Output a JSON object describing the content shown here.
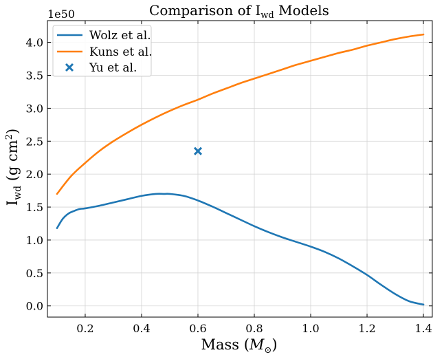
{
  "chart_data": {
    "type": "line",
    "title": {
      "prefix": "Comparison of I",
      "sub": "wd",
      "suffix": " Models"
    },
    "xlabel": {
      "text": "Mass (",
      "math": "M",
      "sub": "⊙",
      "close": ")"
    },
    "ylabel": {
      "main": "I",
      "sub": "wd",
      "rest": " (g cm",
      "sup": "2",
      "close": ")"
    },
    "y_offset_label": "1e50",
    "xlim": [
      0.066,
      1.434
    ],
    "ylim": [
      -0.17,
      4.33
    ],
    "x_ticks": [
      0.2,
      0.4,
      0.6,
      0.8,
      1.0,
      1.2,
      1.4
    ],
    "x_tick_labels": [
      "0.2",
      "0.4",
      "0.6",
      "0.8",
      "1.0",
      "1.2",
      "1.4"
    ],
    "y_ticks": [
      0.0,
      0.5,
      1.0,
      1.5,
      2.0,
      2.5,
      3.0,
      3.5,
      4.0
    ],
    "y_tick_labels": [
      "0.0",
      "0.5",
      "1.0",
      "1.5",
      "2.0",
      "2.5",
      "3.0",
      "3.5",
      "4.0"
    ],
    "grid": true,
    "legend_position": "top-left",
    "series": [
      {
        "name": "Wolz et al.",
        "kind": "line",
        "color": "#1f77b4",
        "x": [
          0.1,
          0.12,
          0.14,
          0.16,
          0.18,
          0.2,
          0.25,
          0.3,
          0.35,
          0.4,
          0.45,
          0.48,
          0.5,
          0.55,
          0.6,
          0.65,
          0.7,
          0.75,
          0.8,
          0.85,
          0.9,
          0.95,
          1.0,
          1.05,
          1.1,
          1.15,
          1.2,
          1.25,
          1.3,
          1.35,
          1.4
        ],
        "y": [
          1.18,
          1.32,
          1.4,
          1.44,
          1.47,
          1.48,
          1.52,
          1.57,
          1.62,
          1.67,
          1.7,
          1.7,
          1.7,
          1.67,
          1.6,
          1.51,
          1.41,
          1.31,
          1.21,
          1.12,
          1.04,
          0.97,
          0.9,
          0.82,
          0.72,
          0.6,
          0.47,
          0.32,
          0.18,
          0.07,
          0.02
        ]
      },
      {
        "name": "Kuns et al.",
        "kind": "line",
        "color": "#ff7f0e",
        "x": [
          0.1,
          0.15,
          0.2,
          0.25,
          0.3,
          0.35,
          0.4,
          0.45,
          0.5,
          0.55,
          0.6,
          0.65,
          0.7,
          0.75,
          0.8,
          0.85,
          0.9,
          0.95,
          1.0,
          1.05,
          1.1,
          1.15,
          1.2,
          1.25,
          1.3,
          1.35,
          1.4
        ],
        "y": [
          1.7,
          1.97,
          2.17,
          2.35,
          2.5,
          2.63,
          2.75,
          2.86,
          2.96,
          3.05,
          3.13,
          3.22,
          3.3,
          3.38,
          3.45,
          3.52,
          3.59,
          3.66,
          3.72,
          3.78,
          3.84,
          3.89,
          3.95,
          4.0,
          4.05,
          4.09,
          4.12
        ]
      },
      {
        "name": "Yu et al.",
        "kind": "scatter",
        "marker": "x",
        "color": "#1f77b4",
        "x": [
          0.6
        ],
        "y": [
          2.35
        ]
      }
    ]
  }
}
